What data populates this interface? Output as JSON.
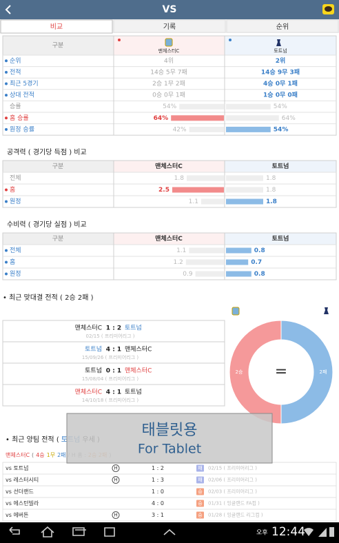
{
  "header": {
    "title": "VS"
  },
  "tabs": {
    "items": [
      "비교",
      "기록",
      "순위"
    ],
    "active": 0
  },
  "comparison": {
    "header": [
      "구분",
      "맨체스터C",
      "토트넘"
    ],
    "rows": [
      {
        "label": "순위",
        "values": [
          "4위",
          "2위"
        ],
        "style": "blue"
      },
      {
        "label": "전적",
        "values": [
          "14승 5무 7패",
          "14승 9무 3패"
        ],
        "style": "blue"
      },
      {
        "label": "최근 5경기",
        "values": [
          "2승 1무 2패",
          "4승 0무 1패"
        ],
        "style": "blue"
      },
      {
        "label": "상대 전적",
        "values": [
          "0승 0무 1패",
          "1승 0무 0패"
        ],
        "style": "blue"
      }
    ],
    "rate_rows": [
      {
        "label": "승률",
        "values": [
          54,
          54
        ],
        "value_labels": [
          "54%",
          "54%"
        ],
        "highlight": "none",
        "style": "plain"
      },
      {
        "label": "홈 승률",
        "values": [
          64,
          64
        ],
        "value_labels": [
          "64%",
          "64%"
        ],
        "highlight": "home",
        "style": "red"
      },
      {
        "label": "원정 승률",
        "values": [
          42,
          54
        ],
        "value_labels": [
          "42%",
          "54%"
        ],
        "highlight": "away",
        "style": "blue"
      }
    ]
  },
  "attack": {
    "title": "공격력 ( 경기당 득점 ) 비교",
    "header": [
      "구분",
      "맨체스터C",
      "토트넘"
    ],
    "rows": [
      {
        "label": "전체",
        "values": [
          1.8,
          1.8
        ],
        "highlight": "none",
        "style": "plain"
      },
      {
        "label": "홈",
        "values": [
          2.5,
          1.8
        ],
        "highlight": "home",
        "style": "red"
      },
      {
        "label": "원정",
        "values": [
          1.1,
          1.8
        ],
        "highlight": "away",
        "style": "blue"
      }
    ]
  },
  "defense": {
    "title": "수비력 ( 경기당 실점 ) 비교",
    "header": [
      "구분",
      "맨체스터C",
      "토트넘"
    ],
    "rows": [
      {
        "label": "전체",
        "values": [
          1.1,
          0.8
        ],
        "highlight": "away",
        "style": "blue"
      },
      {
        "label": "홈",
        "values": [
          1.2,
          0.7
        ],
        "highlight": "away",
        "style": "blue"
      },
      {
        "label": "원정",
        "values": [
          0.9,
          0.8
        ],
        "highlight": "away",
        "style": "blue"
      }
    ]
  },
  "head_to_head": {
    "title": "• 최근 맞대결 전적 ( 2승 2패 )",
    "wins": 2,
    "losses": 2,
    "win_label": "2승",
    "loss_label": "2패",
    "center_label": "=",
    "matches": [
      {
        "home": "맨체스터C",
        "score": "1 : 2",
        "away": "토트넘",
        "date": "02/15 ( 프리미어리그 )",
        "winner": "away"
      },
      {
        "home": "토트넘",
        "score": "4 : 1",
        "away": "맨체스터C",
        "date": "15/09/26 ( 프리미어리그 )",
        "winner": "home"
      },
      {
        "home": "토트넘",
        "score": "0 : 1",
        "away": "맨체스터C",
        "date": "15/08/04 ( 프리미어리그 )",
        "winner": "away"
      },
      {
        "home": "맨체스터C",
        "score": "4 : 1",
        "away": "토트넘",
        "date": "14/10/18 ( 프리미어리그 )",
        "winner": "home"
      }
    ]
  },
  "recent_form": {
    "title_parts": [
      {
        "text": "• 최근 양팀 전적 (",
        "color": "#222222"
      },
      {
        "text": "토트넘",
        "color": "#3a7fc8"
      },
      {
        "text": "우세 )",
        "color": "#222222"
      }
    ],
    "summary_parts": [
      {
        "text": "맨체스터C",
        "color": "#e04040"
      },
      {
        "text": "(",
        "color": "#777777"
      },
      {
        "text": "4승",
        "color": "#e04040"
      },
      {
        "text": "1무",
        "color": "#c8a800"
      },
      {
        "text": "2패",
        "color": "#3a7fc8"
      },
      {
        "text": "/ H 홈 :",
        "color": "#999999"
      },
      {
        "text": "2승 2패",
        "color": "#f0a060"
      },
      {
        "text": ")",
        "color": "#999999"
      }
    ],
    "home_mark": "H",
    "games": [
      {
        "opponent": "vs 토트넘",
        "home": true,
        "score": "1 : 2",
        "result": "패",
        "date": "02/15 ( 프리미어리그 )"
      },
      {
        "opponent": "vs 레스터시티",
        "home": true,
        "score": "1 : 3",
        "result": "패",
        "date": "02/06 ( 프리미어리그 )"
      },
      {
        "opponent": "vs 선더랜드",
        "home": false,
        "score": "1 : 0",
        "result": "승",
        "date": "02/03 ( 프리미어리그 )"
      },
      {
        "opponent": "vs 에스턴빌라",
        "home": false,
        "score": "4 : 0",
        "result": "승",
        "date": "01/31 ( 잉글랜드 FA컵 )"
      },
      {
        "opponent": "vs 에버튼",
        "home": true,
        "score": "3 : 1",
        "result": "승",
        "date": "01/28 ( 잉글랜드 리그컵 )"
      }
    ]
  },
  "overlay": {
    "line1": "태블릿용",
    "line2": "For Tablet"
  },
  "status_bar": {
    "ampm": "오후",
    "time": "12:44"
  }
}
